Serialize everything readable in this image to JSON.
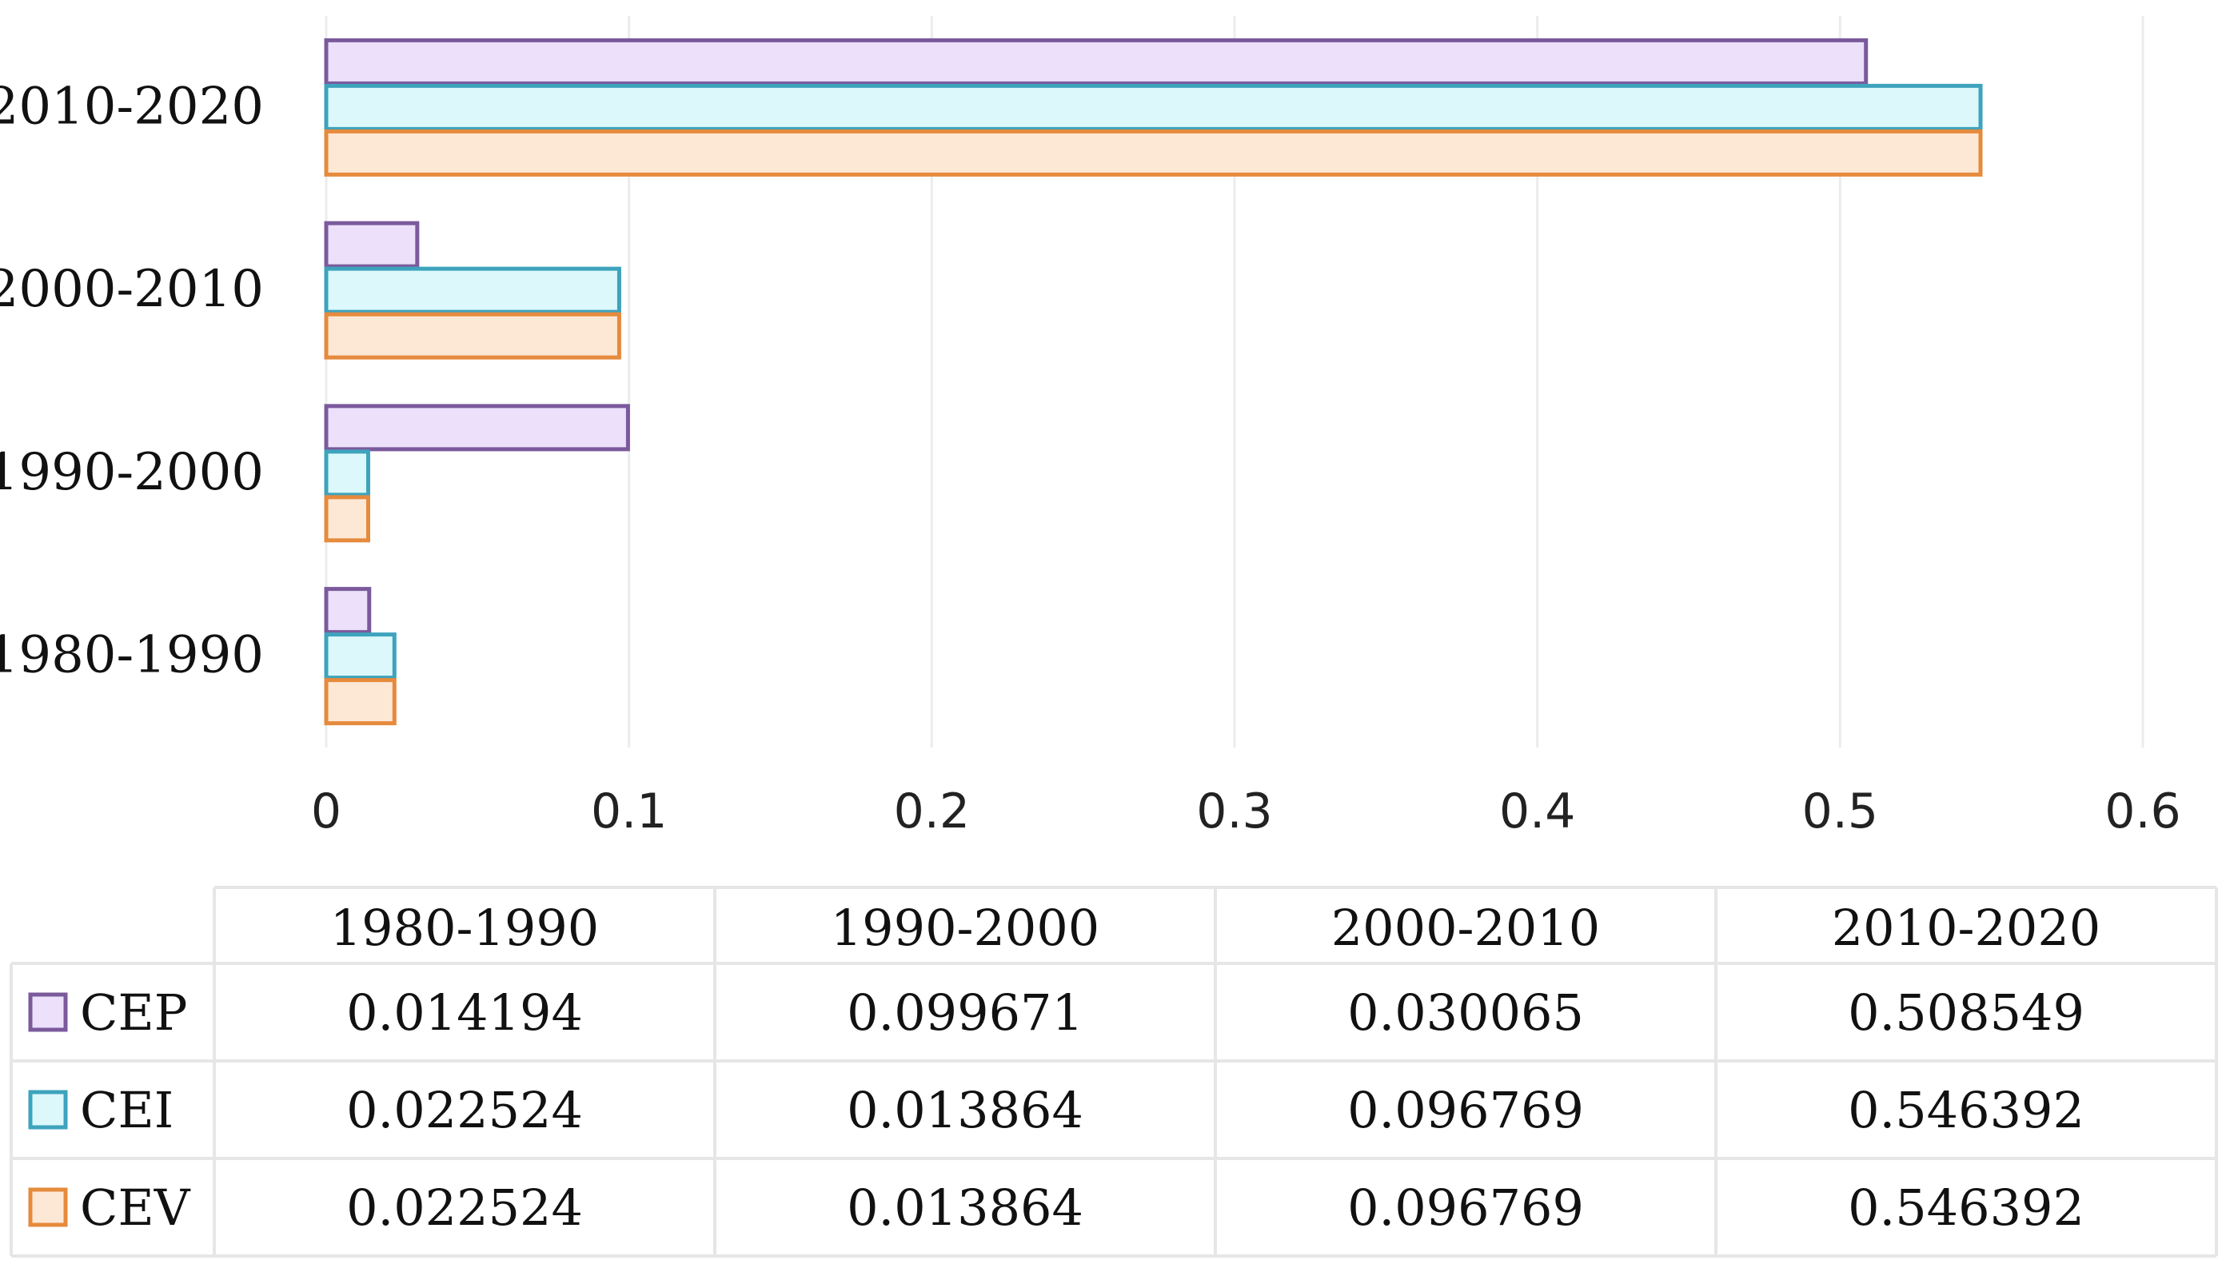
{
  "chart_data": {
    "type": "bar",
    "orientation": "horizontal",
    "categories": [
      "1980-1990",
      "1990-2000",
      "2000-2010",
      "2010-2020"
    ],
    "series": [
      {
        "name": "CEP",
        "values": [
          0.014194,
          0.099671,
          0.030065,
          0.508549
        ],
        "fill": "#ece0fb",
        "stroke": "#7b5a9c"
      },
      {
        "name": "CEI",
        "values": [
          0.022524,
          0.013864,
          0.096769,
          0.546392
        ],
        "fill": "#dcf8fb",
        "stroke": "#3ea3bd"
      },
      {
        "name": "CEV",
        "values": [
          0.022524,
          0.013864,
          0.096769,
          0.546392
        ],
        "fill": "#fde8d6",
        "stroke": "#e68a3d"
      }
    ],
    "xlim": [
      0,
      0.6
    ],
    "x_ticks": [
      "0",
      "0.1",
      "0.2",
      "0.3",
      "0.4",
      "0.5",
      "0.6"
    ],
    "grid": true,
    "legend": "data-table-below",
    "title": "",
    "xlabel": "",
    "ylabel": "",
    "table": {
      "columns": [
        "1980-1990",
        "1990-2000",
        "2000-2010",
        "2010-2020"
      ],
      "rows": [
        {
          "label": "CEP",
          "cells": [
            "0.014194",
            "0.099671",
            "0.030065",
            "0.508549"
          ]
        },
        {
          "label": "CEI",
          "cells": [
            "0.022524",
            "0.013864",
            "0.096769",
            "0.546392"
          ]
        },
        {
          "label": "CEV",
          "cells": [
            "0.022524",
            "0.013864",
            "0.096769",
            "0.546392"
          ]
        }
      ]
    }
  }
}
